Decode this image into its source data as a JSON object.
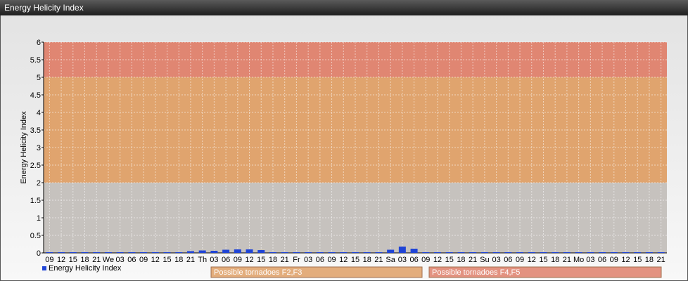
{
  "chart_data": {
    "type": "bar",
    "title": "Energy Helicity Index",
    "ylabel": "Energy Helicity Index",
    "categories": [
      "09",
      "12",
      "15",
      "18",
      "21",
      "We",
      "03",
      "06",
      "09",
      "12",
      "15",
      "18",
      "21",
      "Th",
      "03",
      "06",
      "09",
      "12",
      "15",
      "18",
      "21",
      "Fr",
      "03",
      "06",
      "09",
      "12",
      "15",
      "18",
      "21",
      "Sa",
      "03",
      "06",
      "09",
      "12",
      "15",
      "18",
      "21",
      "Su",
      "03",
      "06",
      "09",
      "12",
      "15",
      "18",
      "21",
      "Mo",
      "03",
      "06",
      "09",
      "12",
      "15",
      "18",
      "21"
    ],
    "series": [
      {
        "name": "Energy Helicity Index",
        "color": "#1f44d6",
        "values": [
          0.02,
          0.02,
          0.02,
          0.02,
          0.02,
          0.02,
          0.02,
          0.02,
          0.02,
          0.02,
          0.02,
          0.02,
          0.05,
          0.07,
          0.06,
          0.09,
          0.1,
          0.1,
          0.08,
          0.02,
          0.02,
          0.02,
          0.02,
          0.02,
          0.02,
          0.02,
          0.02,
          0.02,
          0.02,
          0.09,
          0.18,
          0.12,
          0.02,
          0.02,
          0.02,
          0.02,
          0.02,
          0.02,
          0.02,
          0.02,
          0.02,
          0.02,
          0.02,
          0.02,
          0.02,
          0.02,
          0.02,
          0.02,
          0.02,
          0.02,
          0.02,
          0.02,
          0.02
        ]
      }
    ],
    "ylim": [
      0,
      6
    ],
    "yticks": [
      0,
      0.5,
      1,
      1.5,
      2,
      2.5,
      3,
      3.5,
      4,
      4.5,
      5,
      5.5,
      6
    ],
    "grid": true,
    "zones": [
      {
        "from": 0,
        "to": 2,
        "color": "#c6c2be"
      },
      {
        "from": 2,
        "to": 5,
        "color": "#e0a46e",
        "label": "Possible tornadoes F2,F3"
      },
      {
        "from": 5,
        "to": 6,
        "color": "#e08672",
        "label": "Possible tornadoes F4,F5"
      }
    ]
  }
}
